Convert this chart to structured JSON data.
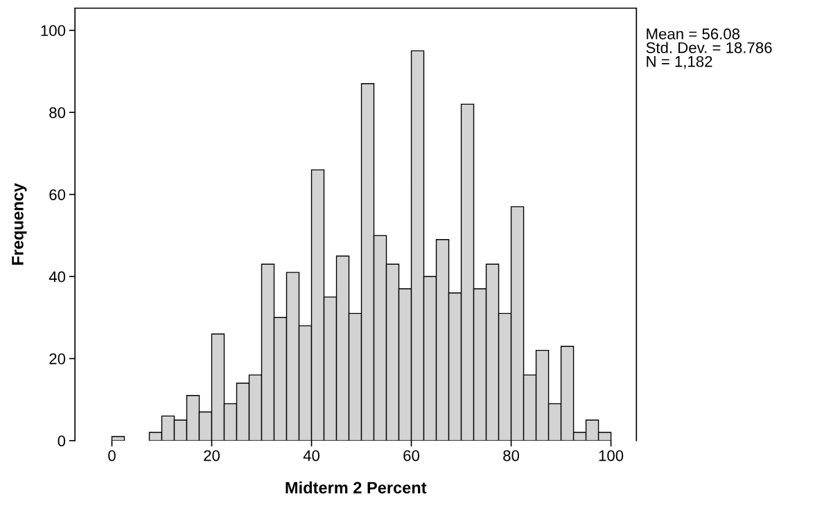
{
  "chart_data": {
    "type": "histogram",
    "xlabel": "Midterm 2 Percent",
    "ylabel": "Frequency",
    "bins": [
      0,
      2.5,
      5,
      7.5,
      10,
      12.5,
      15,
      17.5,
      20,
      22.5,
      25,
      27.5,
      30,
      32.5,
      35,
      37.5,
      40,
      42.5,
      45,
      47.5,
      50,
      52.5,
      55,
      57.5,
      60,
      62.5,
      65,
      67.5,
      70,
      72.5,
      75,
      77.5,
      80,
      82.5,
      85,
      87.5,
      90,
      92.5,
      95,
      97.5,
      100
    ],
    "values": [
      1,
      0,
      0,
      2,
      6,
      5,
      11,
      7,
      26,
      9,
      14,
      16,
      43,
      30,
      41,
      28,
      66,
      35,
      45,
      31,
      87,
      50,
      43,
      37,
      95,
      40,
      49,
      36,
      82,
      37,
      43,
      31,
      57,
      16,
      22,
      9,
      23,
      2,
      5,
      2
    ],
    "color": "#d3d3d3",
    "xlim": [
      -7.4,
      105.1
    ],
    "xticks": [
      0,
      20,
      40,
      60,
      80,
      100
    ],
    "ylim": [
      0,
      105.4
    ],
    "yticks": [
      0,
      20,
      40,
      60,
      80,
      100
    ],
    "grid": false,
    "legend": false,
    "annotations": [
      "Mean = 56.08\nStd. Dev. = 18.786\nN = 1,182"
    ]
  }
}
